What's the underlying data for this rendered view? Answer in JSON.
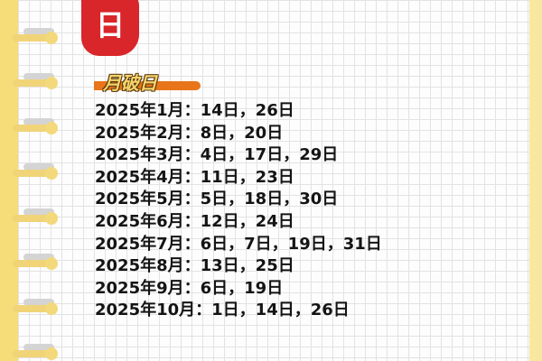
{
  "seal": {
    "char": "日",
    "color": "#d8262a"
  },
  "section_label": "月破日",
  "dates": [
    "2025年1月：14日，26日",
    "2025年2月：8日，20日",
    "2025年3月：4日，17日，29日",
    "2025年4月：11日，23日",
    "2025年5月：5日，18日，30日",
    "2025年6月：12日，24日",
    "2025年7月：6日，7日，19日，31日",
    "2025年8月：13日，25日",
    "2025年9月：6日，19日",
    "2025年10月：1日，14日，26日"
  ]
}
